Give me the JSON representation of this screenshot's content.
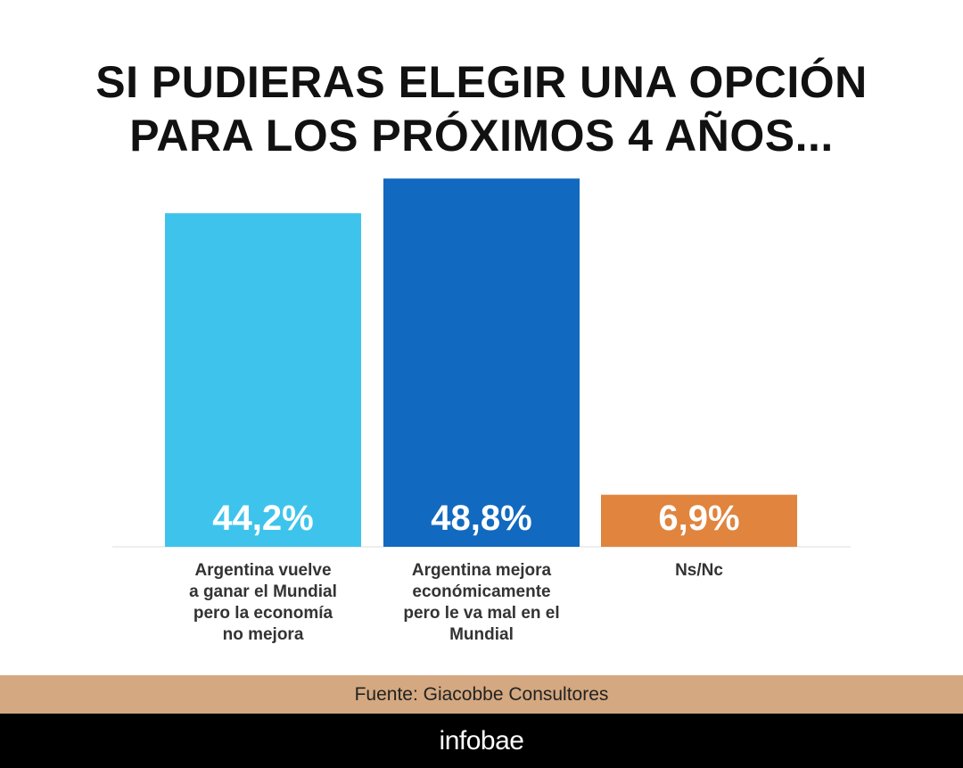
{
  "title_lines": [
    "SI PUDIERAS ELEGIR UNA OPCIÓN",
    "PARA LOS PRÓXIMOS 4 AÑOS..."
  ],
  "chart_data": {
    "type": "bar",
    "title": "SI PUDIERAS ELEGIR UNA OPCIÓN PARA LOS PRÓXIMOS 4 AÑOS...",
    "categories": [
      [
        "Argentina vuelve",
        "a ganar el Mundial",
        "pero la economía",
        "no mejora"
      ],
      [
        "Argentina mejora",
        "económicamente",
        "pero le va mal en el",
        "Mundial"
      ],
      [
        "Ns/Nc"
      ]
    ],
    "values": [
      44.2,
      48.8,
      6.9
    ],
    "value_labels": [
      "44,2%",
      "48,8%",
      "6,9%"
    ],
    "colors": [
      "#3ec4ec",
      "#1269c0",
      "#e0843e"
    ],
    "xlabel": "",
    "ylabel": "",
    "ylim": [
      0,
      50
    ],
    "grid": false,
    "legend": "none"
  },
  "source": "Fuente: Giacobbe Consultores",
  "brand": "infobae"
}
